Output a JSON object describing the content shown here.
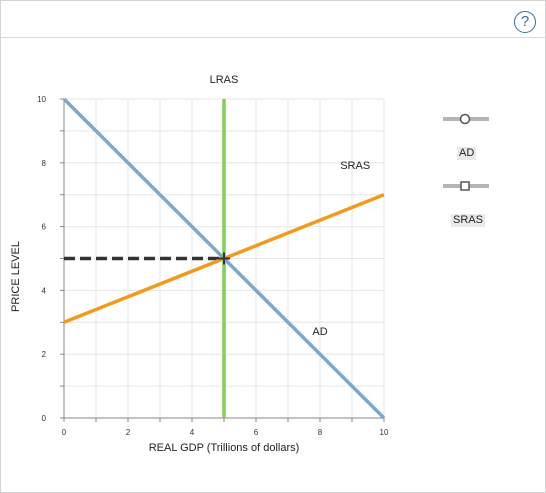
{
  "help_button": {
    "label": "?"
  },
  "chart_data": {
    "type": "line",
    "xlabel": "REAL GDP (Trillions of dollars)",
    "ylabel": "PRICE LEVEL",
    "xlim": [
      0,
      10
    ],
    "ylim": [
      0,
      10
    ],
    "x_ticks": [
      "0",
      "2",
      "4",
      "6",
      "8",
      "10"
    ],
    "y_ticks": [
      "0",
      "2",
      "4",
      "6",
      "8",
      "10"
    ],
    "grid": true,
    "legend": "right",
    "series": [
      {
        "name": "AD",
        "color": "#7ea7c9",
        "points": [
          [
            0,
            10
          ],
          [
            10,
            0
          ]
        ]
      },
      {
        "name": "SRAS",
        "color": "#f29a1d",
        "points": [
          [
            0,
            3
          ],
          [
            10,
            7
          ]
        ]
      },
      {
        "name": "LRAS",
        "color": "#7fcf5b",
        "points": [
          [
            5,
            0
          ],
          [
            5,
            10
          ]
        ]
      }
    ],
    "guide": {
      "color": "#333333",
      "from": [
        0,
        5
      ],
      "to": [
        5,
        5
      ]
    },
    "equilibrium": [
      5,
      5
    ]
  },
  "legend": {
    "items": [
      {
        "label": "AD",
        "marker": "circle"
      },
      {
        "label": "SRAS",
        "marker": "square"
      }
    ]
  }
}
